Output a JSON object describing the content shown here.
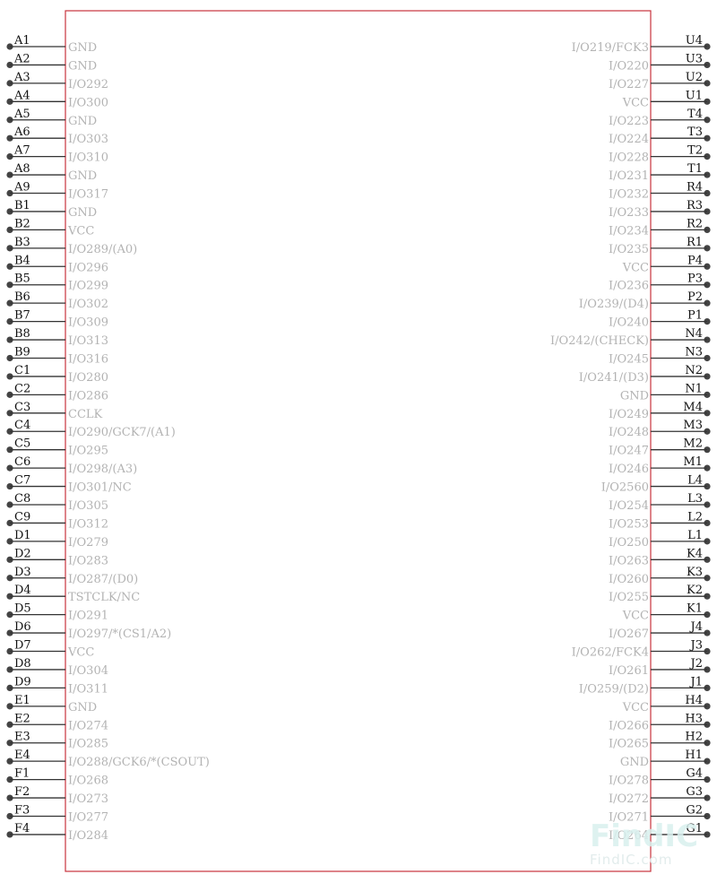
{
  "left_pins": [
    {
      "num": "A1",
      "label": "GND"
    },
    {
      "num": "A2",
      "label": "GND"
    },
    {
      "num": "A3",
      "label": "I/O292"
    },
    {
      "num": "A4",
      "label": "I/O300"
    },
    {
      "num": "A5",
      "label": "GND"
    },
    {
      "num": "A6",
      "label": "I/O303"
    },
    {
      "num": "A7",
      "label": "I/O310"
    },
    {
      "num": "A8",
      "label": "GND"
    },
    {
      "num": "A9",
      "label": "I/O317"
    },
    {
      "num": "B1",
      "label": "GND"
    },
    {
      "num": "B2",
      "label": "VCC"
    },
    {
      "num": "B3",
      "label": "I/O289/(A0)"
    },
    {
      "num": "B4",
      "label": "I/O296"
    },
    {
      "num": "B5",
      "label": "I/O299"
    },
    {
      "num": "B6",
      "label": "I/O302"
    },
    {
      "num": "B7",
      "label": "I/O309"
    },
    {
      "num": "B8",
      "label": "I/O313"
    },
    {
      "num": "B9",
      "label": "I/O316"
    },
    {
      "num": "C1",
      "label": "I/O280"
    },
    {
      "num": "C2",
      "label": "I/O286"
    },
    {
      "num": "C3",
      "label": "CCLK"
    },
    {
      "num": "C4",
      "label": "I/O290/GCK7/(A1)"
    },
    {
      "num": "C5",
      "label": "I/O295"
    },
    {
      "num": "C6",
      "label": "I/O298/(A3)"
    },
    {
      "num": "C7",
      "label": "I/O301/NC"
    },
    {
      "num": "C8",
      "label": "I/O305"
    },
    {
      "num": "C9",
      "label": "I/O312"
    },
    {
      "num": "D1",
      "label": "I/O279"
    },
    {
      "num": "D2",
      "label": "I/O283"
    },
    {
      "num": "D3",
      "label": "I/O287/(D0)"
    },
    {
      "num": "D4",
      "label": "TSTCLK/NC"
    },
    {
      "num": "D5",
      "label": "I/O291"
    },
    {
      "num": "D6",
      "label": "I/O297/*(CS1/A2)"
    },
    {
      "num": "D7",
      "label": "VCC"
    },
    {
      "num": "D8",
      "label": "I/O304"
    },
    {
      "num": "D9",
      "label": "I/O311"
    },
    {
      "num": "E1",
      "label": "GND"
    },
    {
      "num": "E2",
      "label": "I/O274"
    },
    {
      "num": "E3",
      "label": "I/O285"
    },
    {
      "num": "E4",
      "label": "I/O288/GCK6/*(CSOUT)"
    },
    {
      "num": "F1",
      "label": "I/O268"
    },
    {
      "num": "F2",
      "label": "I/O273"
    },
    {
      "num": "F3",
      "label": "I/O277"
    },
    {
      "num": "F4",
      "label": "I/O284"
    }
  ],
  "right_pins": [
    {
      "num": "U4",
      "label": "I/O219/FCK3"
    },
    {
      "num": "U3",
      "label": "I/O220"
    },
    {
      "num": "U2",
      "label": "I/O227"
    },
    {
      "num": "U1",
      "label": "VCC"
    },
    {
      "num": "T4",
      "label": "I/O223"
    },
    {
      "num": "T3",
      "label": "I/O224"
    },
    {
      "num": "T2",
      "label": "I/O228"
    },
    {
      "num": "T1",
      "label": "I/O231"
    },
    {
      "num": "R4",
      "label": "I/O232"
    },
    {
      "num": "R3",
      "label": "I/O233"
    },
    {
      "num": "R2",
      "label": "I/O234"
    },
    {
      "num": "R1",
      "label": "I/O235"
    },
    {
      "num": "P4",
      "label": "VCC"
    },
    {
      "num": "P3",
      "label": "I/O236"
    },
    {
      "num": "P2",
      "label": "I/O239/(D4)"
    },
    {
      "num": "P1",
      "label": "I/O240"
    },
    {
      "num": "N4",
      "label": "I/O242/(CHECK)"
    },
    {
      "num": "N3",
      "label": "I/O245"
    },
    {
      "num": "N2",
      "label": "I/O241/(D3)"
    },
    {
      "num": "N1",
      "label": "GND"
    },
    {
      "num": "M4",
      "label": "I/O249"
    },
    {
      "num": "M3",
      "label": "I/O248"
    },
    {
      "num": "M2",
      "label": "I/O247"
    },
    {
      "num": "M1",
      "label": "I/O246"
    },
    {
      "num": "L4",
      "label": "I/O2560"
    },
    {
      "num": "L3",
      "label": "I/O254"
    },
    {
      "num": "L2",
      "label": "I/O253"
    },
    {
      "num": "L1",
      "label": "I/O250"
    },
    {
      "num": "K4",
      "label": "I/O263"
    },
    {
      "num": "K3",
      "label": "I/O260"
    },
    {
      "num": "K2",
      "label": "I/O255"
    },
    {
      "num": "K1",
      "label": "VCC"
    },
    {
      "num": "J4",
      "label": "I/O267"
    },
    {
      "num": "J3",
      "label": "I/O262/FCK4"
    },
    {
      "num": "J2",
      "label": "I/O261"
    },
    {
      "num": "J1",
      "label": "I/O259/(D2)"
    },
    {
      "num": "H4",
      "label": "VCC"
    },
    {
      "num": "H3",
      "label": "I/O266"
    },
    {
      "num": "H2",
      "label": "I/O265"
    },
    {
      "num": "H1",
      "label": "GND"
    },
    {
      "num": "G4",
      "label": "I/O278"
    },
    {
      "num": "G3",
      "label": "I/O272"
    },
    {
      "num": "G2",
      "label": "I/O271"
    },
    {
      "num": "G1",
      "label": "I/O264"
    }
  ],
  "watermark": {
    "logo_text": "FindIC",
    "url_text": "FindIC.com"
  },
  "colors": {
    "body_outline": "#c8323c",
    "pin_label": "#b3b3b3",
    "pin_number": "#111111",
    "pin_line": "#333333",
    "watermark_logo": "#d9f0ee",
    "watermark_accent": "#fbe3c9"
  }
}
